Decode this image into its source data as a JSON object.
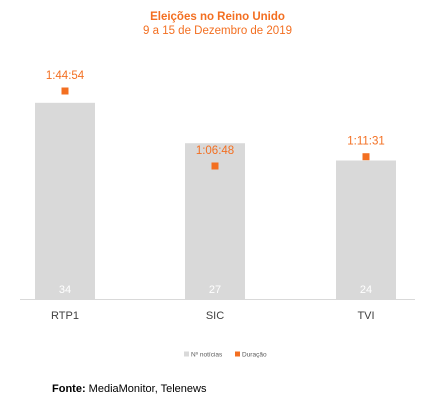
{
  "chart_data": {
    "type": "bar",
    "title": "Eleições no Reino Unido",
    "subtitle": "9 a 15 de Dezembro de 2019",
    "categories": [
      "RTP1",
      "SIC",
      "TVI"
    ],
    "series": [
      {
        "name": "Nº notícias",
        "kind": "bar",
        "values": [
          34,
          27,
          24
        ],
        "color": "#d9d9d9",
        "label_color": "#ffffff"
      },
      {
        "name": "Duração",
        "kind": "marker",
        "values": [
          "1:44:54",
          "1:06:48",
          "1:11:31"
        ],
        "values_seconds": [
          6294,
          4008,
          4291
        ],
        "color": "#f36f21"
      }
    ],
    "legend": {
      "position": "bottom"
    },
    "grid": false
  },
  "source": {
    "label": "Fonte:",
    "text": "MediaMonitor, Telenews"
  }
}
